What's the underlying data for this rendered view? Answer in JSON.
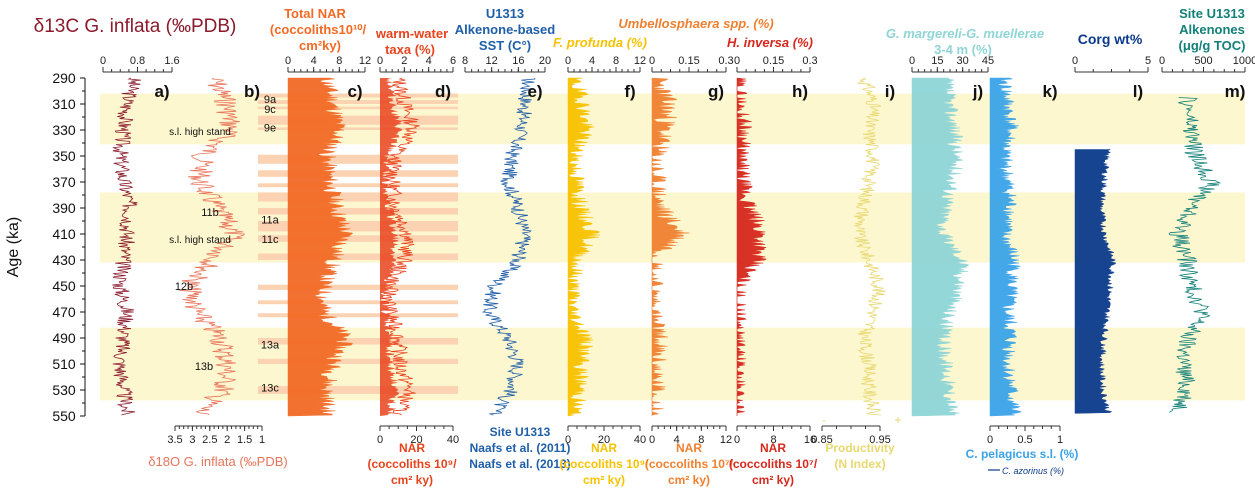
{
  "figure": {
    "y_axis_label": "Age (ka)",
    "y_ticks": [
      290,
      310,
      330,
      350,
      370,
      390,
      410,
      430,
      450,
      470,
      490,
      510,
      530,
      550
    ],
    "colors": {
      "band_yellow": "#fdf7d0",
      "band_orange": "#fbd2b2",
      "d13c": "#8b1a2b",
      "d18o": "#e8755a",
      "nar_total": "#f26a25",
      "warm": "#e8431c",
      "sst": "#1f5ea8",
      "profunda": "#f7c200",
      "umbello": "#f08030",
      "inversa": "#d6281c",
      "productivity": "#e8d870",
      "margereli": "#8fd5d6",
      "pelagicus": "#3ba3e8",
      "corg": "#0b3a8c",
      "alkenones": "#138079"
    }
  },
  "chart_data": [
    {
      "type": "line",
      "panel": "a)",
      "title": "δ13C G. inflata (‰PDB)",
      "top_ticks": [
        "0",
        "0.8",
        "1.6"
      ],
      "ages": [
        290,
        310,
        330,
        350,
        370,
        390,
        410,
        430,
        450,
        470,
        490,
        510,
        530,
        550
      ],
      "values": [
        0.9,
        0.7,
        0.6,
        0.5,
        0.6,
        0.8,
        0.7,
        0.6,
        0.5,
        0.7,
        0.6,
        0.5,
        0.6,
        0.7
      ]
    },
    {
      "type": "line",
      "panel": "b)",
      "title": "δ18O G. inflata (‰PDB)",
      "bottom_ticks": [
        "3.5",
        "3",
        "2.5",
        "2",
        "1.5",
        "1"
      ],
      "ages": [
        290,
        310,
        330,
        350,
        370,
        390,
        410,
        430,
        450,
        470,
        490,
        510,
        530,
        550
      ],
      "values": [
        2.4,
        2.0,
        1.9,
        2.7,
        2.8,
        2.3,
        1.8,
        2.4,
        3.1,
        2.9,
        2.2,
        2.0,
        2.1,
        2.9
      ],
      "annotations": [
        "s.l. high stand",
        "11b",
        "s.l. high stand",
        "12b",
        "13b"
      ]
    },
    {
      "type": "area",
      "panel": "c)",
      "title": "Total NAR (coccoliths10¹⁰/cm²ky)",
      "top_ticks": [
        "0",
        "4",
        "8",
        "12"
      ],
      "ages": [
        290,
        310,
        330,
        350,
        370,
        390,
        410,
        430,
        450,
        470,
        490,
        510,
        530,
        550
      ],
      "values": [
        6.0,
        7.0,
        8.0,
        6.0,
        6.5,
        7.5,
        9.0,
        7.0,
        5.5,
        5.5,
        9.0,
        7.0,
        6.0,
        6.0
      ],
      "mis_labels": [
        "9a",
        "9c",
        "9e",
        "11a",
        "11c",
        "13a",
        "13c"
      ]
    },
    {
      "type": "line",
      "panel": "d)",
      "title": "warm-water taxa (%)",
      "top_ticks": [
        "0",
        "2",
        "4",
        "6"
      ],
      "bottom_title": "NAR (coccoliths 10⁹/cm² ky)",
      "bottom_ticks": [
        "0",
        "20",
        "40"
      ],
      "ages": [
        290,
        310,
        330,
        350,
        370,
        390,
        410,
        430,
        450,
        470,
        490,
        510,
        530,
        550
      ],
      "values": [
        1.5,
        2.0,
        2.8,
        1.2,
        1.0,
        1.3,
        2.3,
        2.0,
        0.8,
        0.8,
        1.5,
        1.6,
        2.4,
        1.4
      ]
    },
    {
      "type": "line",
      "panel": "e)",
      "title": "U1313 Alkenone-based SST (C°)",
      "top_ticks": [
        "8",
        "12",
        "16",
        "20"
      ],
      "bottom_title": "Site U1313 Naafs et al. (2011) Naafs et al. (2013)",
      "ages": [
        290,
        310,
        330,
        350,
        370,
        390,
        410,
        430,
        450,
        470,
        490,
        510,
        530,
        550
      ],
      "values": [
        17.5,
        17.0,
        16.5,
        15.0,
        14.5,
        16.0,
        17.0,
        16.0,
        12.5,
        11.5,
        14.5,
        16.0,
        15.0,
        12.0
      ]
    },
    {
      "type": "area",
      "panel": "f)",
      "title": "F. profunda (%)",
      "top_ticks": [
        "0",
        "4",
        "8",
        "12"
      ],
      "bottom_title": "NAR (coccoliths 10⁹/ cm² ky)",
      "bottom_ticks": [
        "0",
        "20",
        "40"
      ],
      "ages": [
        290,
        310,
        330,
        350,
        370,
        390,
        410,
        430,
        450,
        470,
        490,
        510,
        530,
        550
      ],
      "values": [
        1.0,
        2.5,
        3.0,
        1.0,
        1.5,
        2.0,
        4.0,
        1.5,
        0.8,
        0.8,
        3.0,
        2.0,
        2.0,
        1.0
      ]
    },
    {
      "type": "area",
      "panel": "g)",
      "title": "Umbellosphaera spp. (%)",
      "top_ticks": [
        "0",
        "0.15",
        "0.3"
      ],
      "bottom_title": "NAR (coccoliths 10⁷/ cm² ky)",
      "bottom_ticks": [
        "0",
        "4",
        "8",
        "12"
      ],
      "ages": [
        290,
        310,
        330,
        350,
        370,
        390,
        410,
        430,
        450,
        470,
        490,
        510,
        530,
        550
      ],
      "values": [
        0.02,
        0.06,
        0.05,
        0.01,
        0.01,
        0.03,
        0.12,
        0.01,
        0.0,
        0.0,
        0.02,
        0.01,
        0.01,
        0.0
      ]
    },
    {
      "type": "area",
      "panel": "h)",
      "title": "H. inversa (%)",
      "top_ticks": [
        "0",
        "0.15",
        "0.3"
      ],
      "bottom_title": "NAR (coccoliths 10⁷/ cm² ky)",
      "bottom_ticks": [
        "0",
        "8",
        "16"
      ],
      "ages": [
        290,
        310,
        330,
        350,
        370,
        390,
        410,
        430,
        450,
        470,
        490,
        510,
        530,
        550
      ],
      "values": [
        0.0,
        0.01,
        0.03,
        0.01,
        0.02,
        0.05,
        0.1,
        0.08,
        0.0,
        0.0,
        0.0,
        0.0,
        0.0,
        0.0
      ]
    },
    {
      "type": "line",
      "panel": "i)",
      "title": "Productivity (N Index)",
      "bottom_ticks": [
        "0.85",
        "0.95"
      ],
      "ages": [
        290,
        310,
        330,
        350,
        370,
        390,
        410,
        430,
        450,
        470,
        490,
        510,
        530,
        550
      ],
      "values": [
        0.93,
        0.95,
        0.94,
        0.95,
        0.94,
        0.93,
        0.92,
        0.94,
        0.96,
        0.95,
        0.93,
        0.94,
        0.94,
        0.95
      ],
      "end_marks": [
        "-",
        "+"
      ]
    },
    {
      "type": "area",
      "panel": "j)",
      "title": "G. margereli-G. muellerae 3-4 m (%)",
      "top_ticks": [
        "0",
        "15",
        "30",
        "45"
      ],
      "ages": [
        290,
        310,
        330,
        350,
        370,
        390,
        410,
        430,
        450,
        470,
        490,
        510,
        530,
        550
      ],
      "values": [
        20,
        22,
        25,
        26,
        24,
        20,
        18,
        30,
        28,
        22,
        18,
        20,
        22,
        24
      ]
    },
    {
      "type": "area",
      "panel": "k)",
      "title": "C. pelagicus s.l. (%)",
      "legend": "C. azorinus (%)",
      "bottom_ticks": [
        "0",
        "0.5",
        "1"
      ],
      "ages": [
        290,
        310,
        330,
        350,
        370,
        390,
        410,
        430,
        450,
        470,
        490,
        510,
        530,
        550
      ],
      "values": [
        0.2,
        0.25,
        0.3,
        0.2,
        0.25,
        0.3,
        0.2,
        0.35,
        0.3,
        0.25,
        0.3,
        0.25,
        0.3,
        0.35
      ]
    },
    {
      "type": "area",
      "panel": "l)",
      "title": "Corg wt%",
      "top_ticks": [
        "0",
        "5"
      ],
      "ages": [
        345,
        370,
        390,
        410,
        430,
        450,
        470,
        490,
        510,
        530,
        548
      ],
      "values": [
        2.2,
        2.0,
        1.8,
        2.0,
        2.6,
        2.4,
        2.2,
        2.0,
        1.8,
        1.9,
        2.3
      ]
    },
    {
      "type": "line",
      "panel": "m)",
      "title": "Site U1313 Alkenones (μg/g TOC)",
      "top_ticks": [
        "0",
        "500",
        "1000"
      ],
      "ages": [
        305,
        330,
        350,
        370,
        390,
        410,
        430,
        450,
        470,
        490,
        510,
        530,
        548
      ],
      "values": [
        300,
        350,
        400,
        600,
        350,
        200,
        300,
        350,
        500,
        300,
        250,
        300,
        200
      ]
    }
  ]
}
